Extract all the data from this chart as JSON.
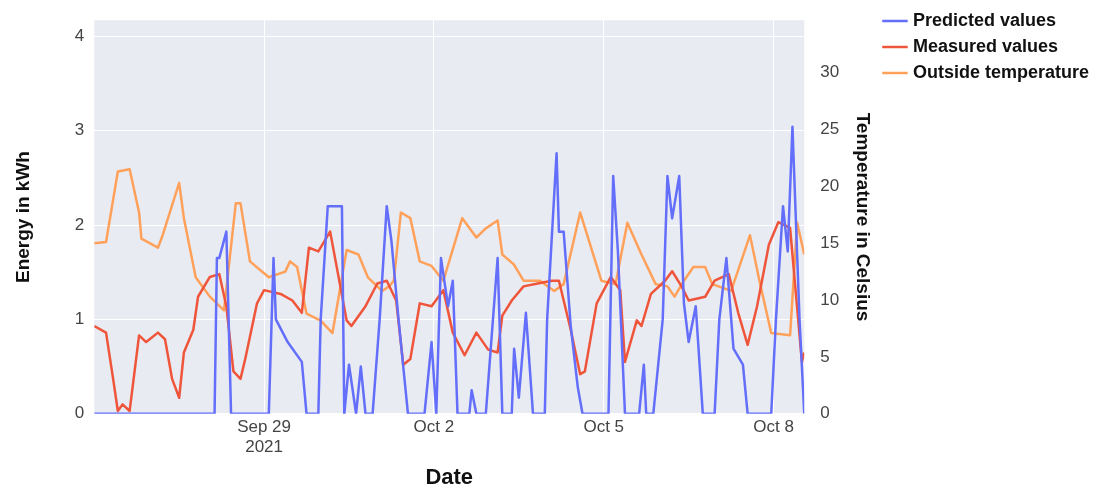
{
  "chart_data": {
    "type": "line",
    "xlabel": "Date",
    "ylabel": "Energy in kWh",
    "y2label": "Temperature in Celsius",
    "xlim": [
      "2021-09-26T00:00",
      "2021-10-08T13:00"
    ],
    "xticks": [
      {
        "value": "2021-09-29T00:00",
        "label": "Sep 29\n2021"
      },
      {
        "value": "2021-10-02T00:00",
        "label": "Oct 2"
      },
      {
        "value": "2021-10-05T00:00",
        "label": "Oct 5"
      },
      {
        "value": "2021-10-08T00:00",
        "label": "Oct 8"
      }
    ],
    "ylim": [
      0,
      4.17
    ],
    "yticks": [
      0,
      1,
      2,
      3,
      4
    ],
    "y2lim": [
      0,
      34.6
    ],
    "y2ticks": [
      0,
      5,
      10,
      15,
      20,
      25,
      30
    ],
    "grid": true,
    "legend": "top right",
    "series": [
      {
        "name": "Predicted values",
        "color": "#636efa",
        "x": [
          "2021-09-26T00:00",
          "2021-09-28T03:00",
          "2021-09-28T04:00",
          "2021-09-28T05:00",
          "2021-09-28T08:00",
          "2021-09-28T10:00",
          "2021-09-29T02:00",
          "2021-09-29T04:00",
          "2021-09-29T05:00",
          "2021-09-29T10:00",
          "2021-09-29T16:00",
          "2021-09-29T18:00",
          "2021-09-29T23:00",
          "2021-09-30T00:00",
          "2021-09-30T03:00",
          "2021-09-30T09:00",
          "2021-09-30T10:00",
          "2021-09-30T12:00",
          "2021-09-30T15:00",
          "2021-09-30T17:00",
          "2021-09-30T19:00",
          "2021-09-30T22:00",
          "2021-10-01T01:00",
          "2021-10-01T04:00",
          "2021-10-01T06:00",
          "2021-10-01T09:00",
          "2021-10-01T13:00",
          "2021-10-01T20:00",
          "2021-10-01T23:00",
          "2021-10-02T01:00",
          "2021-10-02T03:00",
          "2021-10-02T06:00",
          "2021-10-02T08:00",
          "2021-10-02T10:00",
          "2021-10-02T15:00",
          "2021-10-02T16:00",
          "2021-10-02T18:00",
          "2021-10-02T22:00",
          "2021-10-03T03:00",
          "2021-10-03T05:00",
          "2021-10-03T09:00",
          "2021-10-03T10:00",
          "2021-10-03T12:00",
          "2021-10-03T15:00",
          "2021-10-03T18:00",
          "2021-10-03T23:00",
          "2021-10-04T00:00",
          "2021-10-04T04:00",
          "2021-10-04T05:00",
          "2021-10-04T07:00",
          "2021-10-04T10:00",
          "2021-10-04T13:00",
          "2021-10-04T15:00",
          "2021-10-05T02:00",
          "2021-10-05T04:00",
          "2021-10-05T06:00",
          "2021-10-05T09:00",
          "2021-10-05T15:00",
          "2021-10-05T17:00",
          "2021-10-05T18:00",
          "2021-10-05T21:00",
          "2021-10-06T01:00",
          "2021-10-06T03:00",
          "2021-10-06T05:00",
          "2021-10-06T08:00",
          "2021-10-06T10:00",
          "2021-10-06T12:00",
          "2021-10-06T15:00",
          "2021-10-06T18:00",
          "2021-10-06T23:00",
          "2021-10-07T01:00",
          "2021-10-07T04:00",
          "2021-10-07T07:00",
          "2021-10-07T11:00",
          "2021-10-07T13:00",
          "2021-10-07T23:00",
          "2021-10-08T01:00",
          "2021-10-08T04:00",
          "2021-10-08T06:00",
          "2021-10-08T08:00",
          "2021-10-08T11:00",
          "2021-10-08T13:00"
        ],
        "values": [
          0,
          0,
          1.65,
          1.65,
          1.93,
          0,
          0,
          1.65,
          1.0,
          0.76,
          0.55,
          0,
          0,
          1.0,
          2.2,
          2.2,
          0,
          0.52,
          0,
          0.5,
          0,
          0,
          1.0,
          2.2,
          1.83,
          1.0,
          0,
          0,
          0.76,
          0,
          1.65,
          1.14,
          1.41,
          0,
          0,
          0.25,
          0,
          0,
          1.65,
          0,
          0,
          0.69,
          0.17,
          1.07,
          0,
          0,
          1.0,
          2.76,
          1.93,
          1.93,
          0.93,
          0.28,
          0,
          0,
          2.52,
          1.72,
          0,
          0,
          0.52,
          0,
          0,
          1.0,
          2.52,
          2.07,
          2.52,
          1.17,
          0.76,
          1.14,
          0,
          0,
          1.0,
          1.65,
          0.69,
          0.52,
          0,
          0,
          1.0,
          2.2,
          1.72,
          3.04,
          1.0,
          0
        ]
      },
      {
        "name": "Measured values",
        "color": "#ef553b",
        "x": [
          "2021-09-26T00:00",
          "2021-09-26T05:00",
          "2021-09-26T08:00",
          "2021-09-26T10:00",
          "2021-09-26T12:00",
          "2021-09-26T15:00",
          "2021-09-26T19:00",
          "2021-09-26T22:00",
          "2021-09-27T03:00",
          "2021-09-27T06:00",
          "2021-09-27T09:00",
          "2021-09-27T12:00",
          "2021-09-27T14:00",
          "2021-09-27T18:00",
          "2021-09-27T20:00",
          "2021-09-28T01:00",
          "2021-09-28T05:00",
          "2021-09-28T08:00",
          "2021-09-28T11:00",
          "2021-09-28T14:00",
          "2021-09-28T16:00",
          "2021-09-28T21:00",
          "2021-09-29T00:00",
          "2021-09-29T07:00",
          "2021-09-29T12:00",
          "2021-09-29T16:00",
          "2021-09-29T19:00",
          "2021-09-29T23:00",
          "2021-09-30T04:00",
          "2021-09-30T11:00",
          "2021-09-30T13:00",
          "2021-09-30T19:00",
          "2021-10-01T00:00",
          "2021-10-01T04:00",
          "2021-10-01T08:00",
          "2021-10-01T11:00",
          "2021-10-01T14:00",
          "2021-10-01T18:00",
          "2021-10-01T23:00",
          "2021-10-02T04:00",
          "2021-10-02T08:00",
          "2021-10-02T13:00",
          "2021-10-02T18:00",
          "2021-10-02T23:00",
          "2021-10-03T03:00",
          "2021-10-03T05:00",
          "2021-10-03T09:00",
          "2021-10-03T14:00",
          "2021-10-03T20:00",
          "2021-10-04T02:00",
          "2021-10-04T05:00",
          "2021-10-04T10:00",
          "2021-10-04T14:00",
          "2021-10-04T16:00",
          "2021-10-04T21:00",
          "2021-10-05T03:00",
          "2021-10-05T07:00",
          "2021-10-05T09:00",
          "2021-10-05T14:00",
          "2021-10-05T16:00",
          "2021-10-05T20:00",
          "2021-10-06T02:00",
          "2021-10-06T05:00",
          "2021-10-06T09:00",
          "2021-10-06T12:00",
          "2021-10-06T19:00",
          "2021-10-06T23:00",
          "2021-10-07T05:00",
          "2021-10-07T09:00",
          "2021-10-07T13:00",
          "2021-10-07T17:00",
          "2021-10-07T22:00",
          "2021-10-08T02:00",
          "2021-10-08T07:00",
          "2021-10-08T12:00",
          "2021-10-08T13:00"
        ],
        "values": [
          0.93,
          0.86,
          0.37,
          0.03,
          0.1,
          0.03,
          0.83,
          0.76,
          0.86,
          0.79,
          0.37,
          0.17,
          0.65,
          0.89,
          1.24,
          1.45,
          1.48,
          1.14,
          0.45,
          0.37,
          0.58,
          1.17,
          1.31,
          1.27,
          1.2,
          1.07,
          1.76,
          1.72,
          1.93,
          0.99,
          0.93,
          1.14,
          1.38,
          1.41,
          1.2,
          0.52,
          0.58,
          1.17,
          1.14,
          1.31,
          0.86,
          0.62,
          0.86,
          0.68,
          0.65,
          1.04,
          1.2,
          1.35,
          1.38,
          1.41,
          1.41,
          0.89,
          0.42,
          0.45,
          1.17,
          1.45,
          1.31,
          0.55,
          0.99,
          0.93,
          1.27,
          1.41,
          1.51,
          1.35,
          1.2,
          1.24,
          1.41,
          1.48,
          1.07,
          0.73,
          1.14,
          1.79,
          2.03,
          1.97,
          0.55,
          0.65
        ]
      },
      {
        "name": "Outside temperature",
        "color": "#ffa15a",
        "axis": "y2",
        "x": [
          "2021-09-26T00:00",
          "2021-09-26T05:00",
          "2021-09-26T10:00",
          "2021-09-26T15:00",
          "2021-09-26T19:00",
          "2021-09-26T20:00",
          "2021-09-27T03:00",
          "2021-09-27T05:00",
          "2021-09-27T12:00",
          "2021-09-27T14:00",
          "2021-09-27T19:00",
          "2021-09-28T01:00",
          "2021-09-28T07:00",
          "2021-09-28T12:00",
          "2021-09-28T14:00",
          "2021-09-28T18:00",
          "2021-09-29T02:00",
          "2021-09-29T09:00",
          "2021-09-29T11:00",
          "2021-09-29T14:00",
          "2021-09-29T18:00",
          "2021-09-30T00:00",
          "2021-09-30T05:00",
          "2021-09-30T11:00",
          "2021-09-30T16:00",
          "2021-09-30T20:00",
          "2021-10-01T02:00",
          "2021-10-01T05:00",
          "2021-10-01T07:00",
          "2021-10-01T10:00",
          "2021-10-01T14:00",
          "2021-10-01T18:00",
          "2021-10-01T23:00",
          "2021-10-02T04:00",
          "2021-10-02T12:00",
          "2021-10-02T18:00",
          "2021-10-02T22:00",
          "2021-10-03T03:00",
          "2021-10-03T05:00",
          "2021-10-03T10:00",
          "2021-10-03T14:00",
          "2021-10-03T21:00",
          "2021-10-04T03:00",
          "2021-10-04T07:00",
          "2021-10-04T14:00",
          "2021-10-04T23:00",
          "2021-10-05T05:00",
          "2021-10-05T10:00",
          "2021-10-05T16:00",
          "2021-10-05T22:00",
          "2021-10-06T03:00",
          "2021-10-06T06:00",
          "2021-10-06T10:00",
          "2021-10-06T14:00",
          "2021-10-06T19:00",
          "2021-10-06T22:00",
          "2021-10-07T06:00",
          "2021-10-07T14:00",
          "2021-10-07T18:00",
          "2021-10-07T23:00",
          "2021-10-08T07:00",
          "2021-10-08T10:00",
          "2021-10-08T13:00"
        ],
        "values": [
          15.0,
          15.1,
          21.3,
          21.5,
          17.7,
          15.4,
          14.6,
          15.7,
          20.3,
          17.2,
          12.0,
          10.3,
          9.1,
          18.5,
          18.5,
          13.4,
          12.0,
          12.5,
          13.4,
          12.9,
          8.8,
          8.2,
          7.1,
          14.4,
          14.0,
          12.0,
          10.8,
          11.2,
          11.7,
          17.7,
          17.2,
          13.4,
          13.0,
          11.7,
          17.2,
          15.5,
          16.3,
          17.0,
          14.0,
          13.1,
          11.7,
          11.7,
          10.8,
          11.4,
          17.7,
          11.7,
          11.4,
          16.8,
          14.0,
          11.4,
          11.2,
          10.3,
          11.7,
          12.9,
          12.9,
          11.4,
          10.8,
          15.7,
          11.7,
          7.1,
          6.9,
          16.8,
          14.0
        ]
      }
    ]
  }
}
